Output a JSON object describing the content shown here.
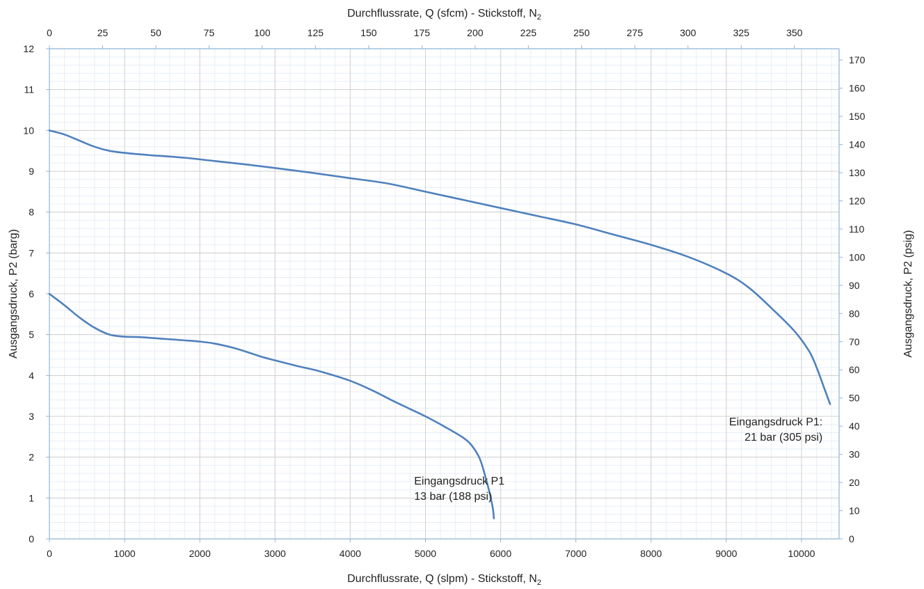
{
  "chart_data": {
    "type": "line",
    "title": "",
    "xlabel_bottom": {
      "text": "Durchflussrate, Q (slpm) - Stickstoff, N",
      "sub": "2"
    },
    "xlabel_top": {
      "text": "Durchflussrate, Q (sfcm) - Stickstoff, N",
      "sub": "2"
    },
    "ylabel_left": "Ausgangsdruck, P2 (barg)",
    "ylabel_right": "Ausgangsdruck, P2 (psig)",
    "xlim": [
      0,
      10500
    ],
    "ylim": [
      0,
      12
    ],
    "xlim_top": [
      0,
      371
    ],
    "ylim_right": [
      0,
      174
    ],
    "x_ticks": [
      0,
      1000,
      2000,
      3000,
      4000,
      5000,
      6000,
      7000,
      8000,
      9000,
      10000
    ],
    "x_tick_labels": [
      "0",
      "1000",
      "2000",
      "3000",
      "4000",
      "5000",
      "6000",
      "7000",
      "8000",
      "9000",
      "10000"
    ],
    "y_ticks": [
      0,
      1,
      2,
      3,
      4,
      5,
      6,
      7,
      8,
      9,
      10,
      11,
      12
    ],
    "y_tick_labels": [
      "0",
      "1",
      "2",
      "3",
      "4",
      "5",
      "6",
      "7",
      "8",
      "9",
      "10",
      "11",
      "12"
    ],
    "top_ticks": [
      0,
      25,
      50,
      75,
      100,
      125,
      150,
      175,
      200,
      225,
      250,
      275,
      300,
      325,
      350
    ],
    "top_tick_labels": [
      "0",
      "25",
      "50",
      "75",
      "100",
      "125",
      "150",
      "175",
      "200",
      "225",
      "250",
      "275",
      "300",
      "325",
      "350"
    ],
    "right_ticks": [
      0,
      10,
      20,
      30,
      40,
      50,
      60,
      70,
      80,
      90,
      100,
      110,
      120,
      130,
      140,
      150,
      160,
      170
    ],
    "right_tick_labels": [
      "0",
      "10",
      "20",
      "30",
      "40",
      "50",
      "60",
      "70",
      "80",
      "90",
      "100",
      "110",
      "120",
      "130",
      "140",
      "150",
      "160",
      "170"
    ],
    "grid": true,
    "series_color": "#4F81BD",
    "series": [
      {
        "x": [
          0,
          200,
          400,
          600,
          800,
          1000,
          1200,
          1500,
          1800,
          2000,
          2200,
          2500,
          2800,
          3000,
          3300,
          3600,
          4000,
          4300,
          4600,
          5000,
          5300,
          5500,
          5600,
          5700,
          5750,
          5800,
          5850,
          5880,
          5900,
          5910
        ],
        "y": [
          6.0,
          5.72,
          5.42,
          5.17,
          5.0,
          4.95,
          4.94,
          4.9,
          4.86,
          4.83,
          4.78,
          4.65,
          4.47,
          4.37,
          4.23,
          4.1,
          3.87,
          3.63,
          3.35,
          3.0,
          2.7,
          2.48,
          2.32,
          2.05,
          1.82,
          1.5,
          1.15,
          0.9,
          0.7,
          0.5
        ]
      },
      {
        "x": [
          0,
          200,
          400,
          600,
          800,
          1000,
          1300,
          1800,
          2200,
          2600,
          3000,
          3500,
          4000,
          4500,
          5000,
          5500,
          6000,
          6500,
          7000,
          7500,
          8000,
          8500,
          9000,
          9300,
          9600,
          9900,
          10100,
          10200,
          10300,
          10380
        ],
        "y": [
          10.0,
          9.9,
          9.75,
          9.6,
          9.5,
          9.45,
          9.4,
          9.33,
          9.25,
          9.17,
          9.08,
          8.96,
          8.83,
          8.7,
          8.5,
          8.3,
          8.1,
          7.9,
          7.7,
          7.45,
          7.2,
          6.9,
          6.5,
          6.15,
          5.65,
          5.1,
          4.6,
          4.2,
          3.7,
          3.3
        ]
      }
    ],
    "annotations": [
      {
        "lines": [
          "Eingangsdruck P1",
          "13 bar (188 psi)"
        ],
        "x": 4850,
        "y": 1.33,
        "anchor": "start"
      },
      {
        "lines": [
          "Eingangsdruck  P1:",
          "21 bar (305 psi)"
        ],
        "x": 10280,
        "y": 2.78,
        "anchor": "end"
      }
    ]
  }
}
